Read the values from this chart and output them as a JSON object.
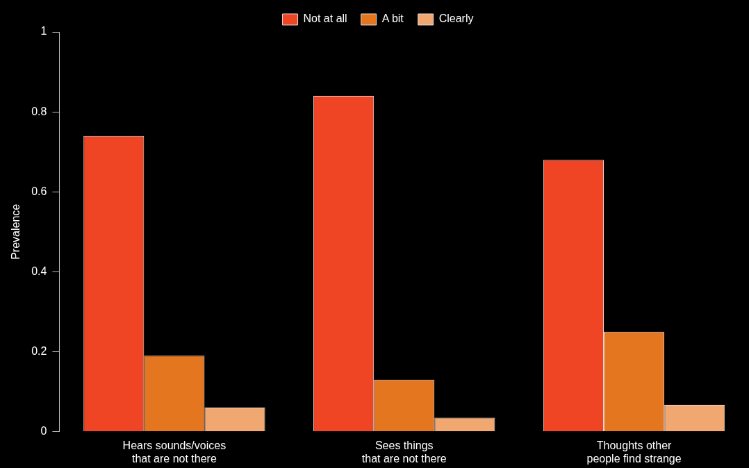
{
  "chart_data": {
    "type": "bar",
    "ylabel": "Prevalence",
    "categories": [
      "Hears sounds/voices\nthat are not there",
      "Sees things\nthat are not there",
      "Thoughts other\npeople find strange"
    ],
    "series": [
      {
        "name": "Not at all",
        "color": "#f04525",
        "values": [
          0.74,
          0.84,
          0.68
        ]
      },
      {
        "name": "A bit",
        "color": "#e47620",
        "values": [
          0.19,
          0.13,
          0.25
        ]
      },
      {
        "name": "Clearly",
        "color": "#f0a870",
        "values": [
          0.06,
          0.035,
          0.067
        ]
      }
    ],
    "ylim": [
      0,
      1
    ],
    "yticks": [
      0,
      0.2,
      0.4,
      0.6,
      0.8,
      1
    ],
    "grid": false,
    "legend": "top"
  }
}
